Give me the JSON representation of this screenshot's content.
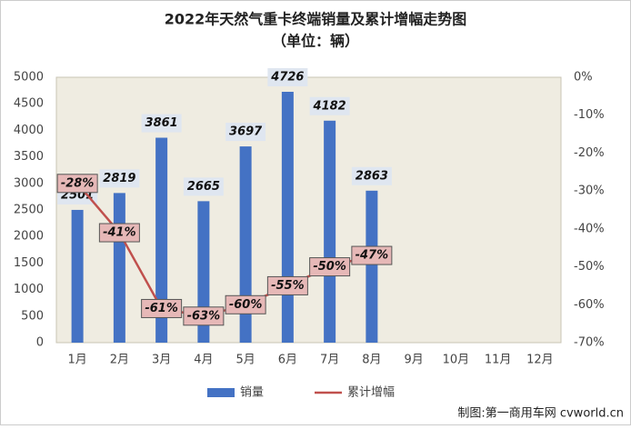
{
  "chart_data": {
    "type": "bar",
    "title": "2022年天然气重卡终端销量及累计增幅走势图",
    "subtitle": "（单位：辆）",
    "categories": [
      "1月",
      "2月",
      "3月",
      "4月",
      "5月",
      "6月",
      "7月",
      "8月",
      "9月",
      "10月",
      "11月",
      "12月"
    ],
    "series": [
      {
        "name": "销量",
        "type": "bar",
        "color": "#4472c4",
        "values": [
          2501,
          2819,
          3861,
          2665,
          3697,
          4726,
          4182,
          2863,
          null,
          null,
          null,
          null
        ]
      },
      {
        "name": "累计增幅",
        "type": "line",
        "axis": "y2",
        "color": "#c0504d",
        "values": [
          -28,
          -41,
          -61,
          -63,
          -60,
          -55,
          -50,
          -47,
          null,
          null,
          null,
          null
        ],
        "value_labels": [
          "-28%",
          "-41%",
          "-61%",
          "-63%",
          "-60%",
          "-55%",
          "-50%",
          "-47%",
          null,
          null,
          null,
          null
        ]
      }
    ],
    "ylim": [
      0,
      5000
    ],
    "yticks": [
      0,
      500,
      1000,
      1500,
      2000,
      2500,
      3000,
      3500,
      4000,
      4500,
      5000
    ],
    "y2lim": [
      -70,
      0
    ],
    "y2ticks": [
      {
        "value": 0,
        "label": "0%"
      },
      {
        "value": -10,
        "label": "-10%"
      },
      {
        "value": -20,
        "label": "-20%"
      },
      {
        "value": -30,
        "label": "-30%"
      },
      {
        "value": -40,
        "label": "-40%"
      },
      {
        "value": -50,
        "label": "-50%"
      },
      {
        "value": -60,
        "label": "-60%"
      },
      {
        "value": -70,
        "label": "-70%"
      }
    ],
    "grid": false,
    "legend": "bottom",
    "source": "制图:第一商用车网 cvworld.cn"
  }
}
